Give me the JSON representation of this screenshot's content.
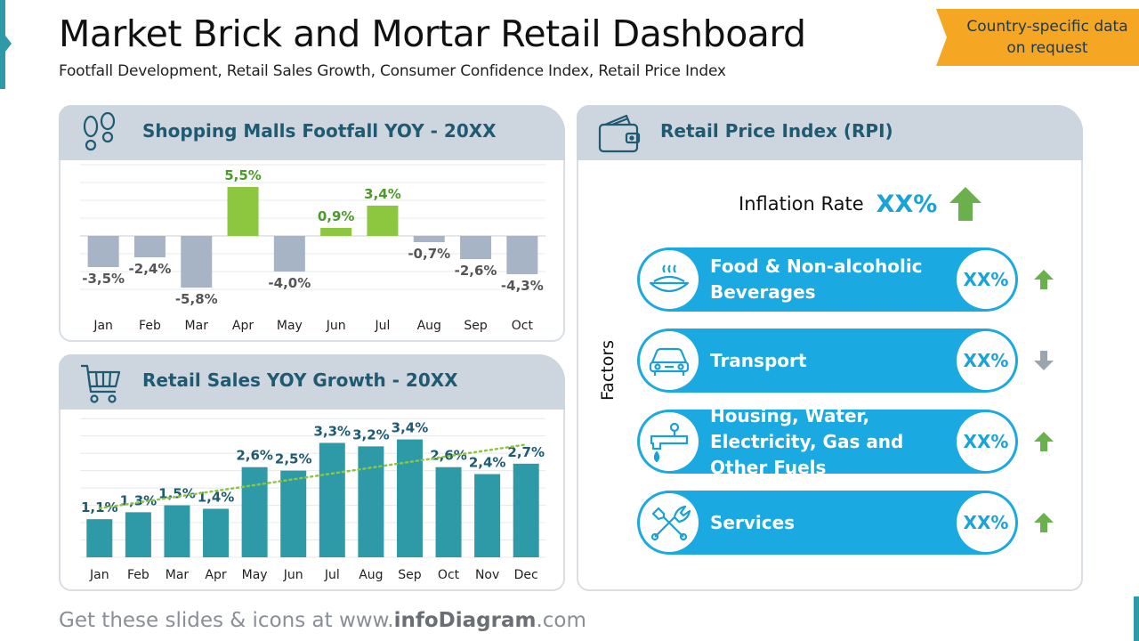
{
  "header": {
    "title": "Market Brick and Mortar Retail Dashboard",
    "subtitle": "Footfall Development, Retail Sales Growth, Consumer Confidence Index, Retail Price Index"
  },
  "badge": {
    "text": "Country-specific data on request",
    "color": "#f5a623"
  },
  "colors": {
    "positive": "#8dc63f",
    "negative": "#a7b4c5",
    "bar": "#2e9aa8",
    "accent": "#1aa9e1",
    "header": "#cdd5de",
    "title_text": "#1e5a72",
    "trend_line": "#8dc63f",
    "up_arrow": "#6ab04c",
    "down_arrow": "#9aa5b1"
  },
  "panels": {
    "footfall": {
      "title": "Shopping Malls Footfall YOY - 20XX",
      "icon": "footprints-icon"
    },
    "sales": {
      "title": "Retail Sales YOY Growth - 20XX",
      "icon": "shopping-cart-icon"
    },
    "rpi": {
      "title": "Retail Price Index (RPI)",
      "icon": "wallet-icon"
    }
  },
  "chart_data": [
    {
      "type": "bar",
      "title": "Shopping Malls Footfall YOY - 20XX",
      "categories": [
        "Jan",
        "Feb",
        "Mar",
        "Apr",
        "May",
        "Jun",
        "Jul",
        "Aug",
        "Sep",
        "Oct"
      ],
      "values": [
        -3.5,
        -2.4,
        -5.8,
        5.5,
        -4.0,
        0.9,
        3.4,
        -0.7,
        -2.6,
        -4.3
      ],
      "labels": [
        "-3,5%",
        "-2,4%",
        "-5,8%",
        "5,5%",
        "-4,0%",
        "0,9%",
        "3,4%",
        "-0,7%",
        "-2,6%",
        "-4,3%"
      ],
      "ylim": [
        -6.5,
        7.5
      ],
      "grid": true
    },
    {
      "type": "bar",
      "title": "Retail Sales YOY Growth - 20XX",
      "categories": [
        "Jan",
        "Feb",
        "Mar",
        "Apr",
        "May",
        "Jun",
        "Jul",
        "Aug",
        "Sep",
        "Oct",
        "Nov",
        "Dec"
      ],
      "values": [
        1.1,
        1.3,
        1.5,
        1.4,
        2.6,
        2.5,
        3.3,
        3.2,
        3.4,
        2.6,
        2.4,
        2.7
      ],
      "labels": [
        "1,1%",
        "1,3%",
        "1,5%",
        "1,4%",
        "2,6%",
        "2,5%",
        "3,3%",
        "3,2%",
        "3,4%",
        "2,6%",
        "2,4%",
        "2,7%"
      ],
      "trendline": "linear",
      "ylim": [
        0,
        3.8
      ],
      "grid": true
    }
  ],
  "rpi": {
    "inflation_label": "Inflation Rate",
    "inflation_value": "XX%",
    "inflation_trend": "up",
    "factors_label": "Factors",
    "factors": [
      {
        "label": "Food & Non-alcoholic Beverages",
        "value": "XX%",
        "trend": "up",
        "icon": "food-bowl-icon"
      },
      {
        "label": "Transport",
        "value": "XX%",
        "trend": "down",
        "icon": "car-icon"
      },
      {
        "label": "Housing, Water, Electricity, Gas and Other Fuels",
        "value": "XX%",
        "trend": "up",
        "icon": "water-tap-icon"
      },
      {
        "label": "Services",
        "value": "XX%",
        "trend": "up",
        "icon": "tools-icon"
      }
    ]
  },
  "footer": {
    "prefix": "Get these slides & icons at www.",
    "brand": "infoDiagram",
    "suffix": ".com"
  }
}
